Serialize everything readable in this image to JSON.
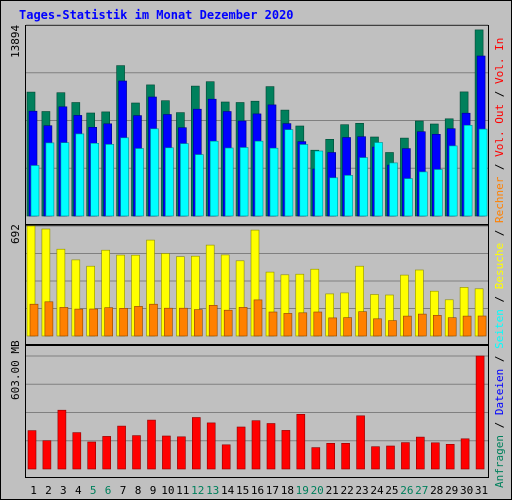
{
  "title": "Tages-Statistik im Monat Dezember 2020",
  "colors": {
    "background": "#c0c0c0",
    "title_text": "#0000ff",
    "gridline": "#808080",
    "anfragen": "#00805c",
    "dateien": "#0000ff",
    "seiten": "#00ffff",
    "besuche": "#ffff00",
    "rechner": "#ff8000",
    "volume": "#ff0000",
    "tick_weekday": "#000000",
    "tick_weekend": "#00805c"
  },
  "right_legend": [
    {
      "text": "Anfragen",
      "color": "#00805c"
    },
    {
      "text": " / ",
      "color": "#000000"
    },
    {
      "text": "Dateien",
      "color": "#0000ff"
    },
    {
      "text": " / ",
      "color": "#000000"
    },
    {
      "text": "Seiten",
      "color": "#00ffff"
    },
    {
      "text": " / ",
      "color": "#000000"
    },
    {
      "text": "Besuche",
      "color": "#ffff00"
    },
    {
      "text": " / ",
      "color": "#000000"
    },
    {
      "text": "Rechner",
      "color": "#ff8000"
    },
    {
      "text": " / ",
      "color": "#000000"
    },
    {
      "text": "Vol. Out",
      "color": "#ff0000"
    },
    {
      "text": " / ",
      "color": "#000000"
    },
    {
      "text": "Vol. In",
      "color": "#ff0000"
    }
  ],
  "chart_data": [
    {
      "type": "bar",
      "y_max_label": "13894",
      "ylim": [
        0,
        13894
      ],
      "grid": true,
      "categories": [
        "1",
        "2",
        "3",
        "4",
        "5",
        "6",
        "7",
        "8",
        "9",
        "10",
        "11",
        "12",
        "13",
        "14",
        "15",
        "16",
        "17",
        "18",
        "19",
        "20",
        "21",
        "22",
        "23",
        "24",
        "25",
        "26",
        "27",
        "28",
        "29",
        "30",
        "31"
      ],
      "weekend_days": [
        "5",
        "6",
        "12",
        "13",
        "19",
        "20",
        "26",
        "27"
      ],
      "series": [
        {
          "name": "Anfragen",
          "color": "#00805c",
          "values": [
            9010,
            7600,
            8970,
            8260,
            7490,
            7570,
            10940,
            8220,
            9540,
            8390,
            7520,
            9450,
            9770,
            8290,
            8260,
            8350,
            9410,
            7700,
            6550,
            4790,
            5580,
            6640,
            6740,
            5750,
            4620,
            5670,
            6910,
            6690,
            7070,
            9030,
            13540
          ]
        },
        {
          "name": "Dateien",
          "color": "#0000ff",
          "values": [
            7620,
            6570,
            7940,
            7320,
            6450,
            6710,
            9820,
            7300,
            8660,
            7380,
            6420,
            7770,
            8500,
            7600,
            6910,
            7430,
            8080,
            6720,
            5410,
            3420,
            4620,
            5710,
            5770,
            5010,
            3700,
            4900,
            6130,
            5940,
            6350,
            7480,
            11640
          ]
        },
        {
          "name": "Seiten",
          "color": "#00ffff",
          "values": [
            3670,
            5320,
            5330,
            5970,
            5290,
            5210,
            5690,
            4910,
            6340,
            4960,
            5270,
            4470,
            5440,
            4950,
            4980,
            5440,
            4930,
            6280,
            5200,
            4730,
            2780,
            2950,
            4250,
            5350,
            3860,
            2720,
            3210,
            3380,
            5100,
            6600,
            6320
          ]
        }
      ]
    },
    {
      "type": "bar",
      "y_max_label": "692",
      "ylim": [
        0,
        692
      ],
      "grid": true,
      "categories": [
        "1",
        "2",
        "3",
        "4",
        "5",
        "6",
        "7",
        "8",
        "9",
        "10",
        "11",
        "12",
        "13",
        "14",
        "15",
        "16",
        "17",
        "18",
        "19",
        "20",
        "21",
        "22",
        "23",
        "24",
        "25",
        "26",
        "27",
        "28",
        "29",
        "30",
        "31"
      ],
      "series": [
        {
          "name": "Besuche",
          "color": "#ffff00",
          "values": [
            692,
            673,
            546,
            479,
            439,
            540,
            509,
            508,
            603,
            519,
            499,
            502,
            572,
            510,
            473,
            666,
            402,
            385,
            389,
            420,
            265,
            271,
            439,
            261,
            258,
            383,
            415,
            282,
            228,
            306,
            297
          ]
        },
        {
          "name": "Rechner",
          "color": "#ff8000",
          "values": [
            200,
            215,
            180,
            169,
            170,
            178,
            174,
            186,
            200,
            175,
            175,
            166,
            193,
            162,
            180,
            227,
            151,
            142,
            146,
            151,
            114,
            116,
            153,
            108,
            97,
            125,
            138,
            130,
            115,
            125,
            126
          ]
        }
      ]
    },
    {
      "type": "bar",
      "y_max_label": "603.00 MB",
      "ylim": [
        0,
        603
      ],
      "grid": true,
      "categories": [
        "1",
        "2",
        "3",
        "4",
        "5",
        "6",
        "7",
        "8",
        "9",
        "10",
        "11",
        "12",
        "13",
        "14",
        "15",
        "16",
        "17",
        "18",
        "19",
        "20",
        "21",
        "22",
        "23",
        "24",
        "25",
        "26",
        "27",
        "28",
        "29",
        "30",
        "31"
      ],
      "series": [
        {
          "name": "Vol. Out",
          "color": "#ff0000",
          "values": [
            205,
            151,
            314,
            194,
            144,
            174,
            229,
            178,
            261,
            176,
            172,
            275,
            246,
            129,
            224,
            258,
            243,
            206,
            292,
            114,
            137,
            137,
            284,
            119,
            123,
            141,
            170,
            140,
            132,
            161,
            603
          ]
        }
      ]
    }
  ]
}
